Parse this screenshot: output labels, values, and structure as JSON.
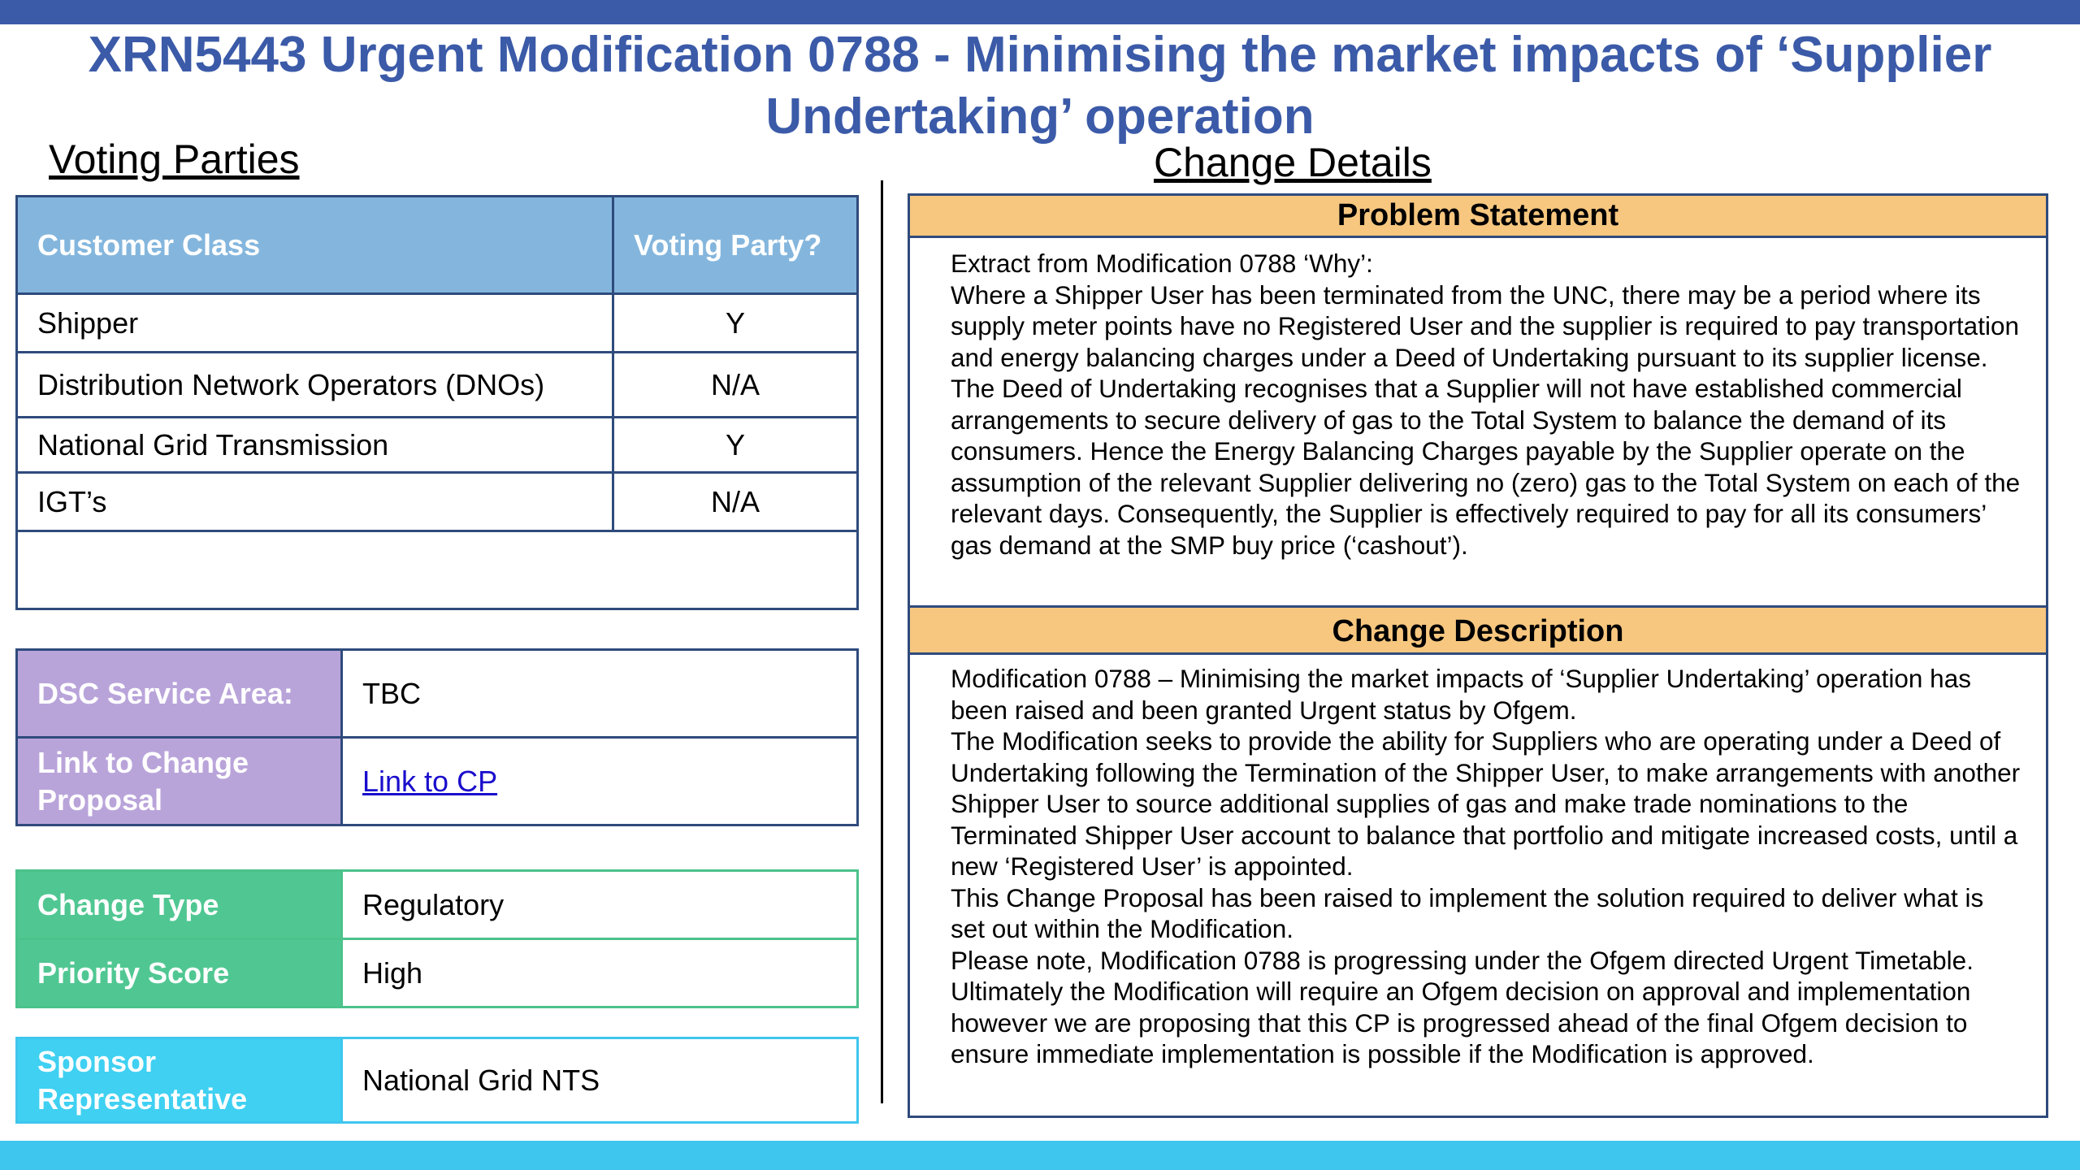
{
  "title": "XRN5443 Urgent Modification 0788 - Minimising the market impacts of ‘Supplier Undertaking’ operation",
  "voting_parties": {
    "heading": "Voting Parties",
    "columns": [
      "Customer Class",
      "Voting Party?"
    ],
    "rows": [
      {
        "customer_class": "Shipper",
        "voting": "Y"
      },
      {
        "customer_class": "Distribution Network Operators (DNOs)",
        "voting": "N/A"
      },
      {
        "customer_class": "National Grid Transmission",
        "voting": "Y"
      },
      {
        "customer_class": "IGT’s",
        "voting": "N/A"
      }
    ]
  },
  "info": {
    "dsc_service_area": {
      "label": "DSC Service Area:",
      "value": "TBC"
    },
    "link_to_cp": {
      "label": "Link to Change Proposal",
      "value": "Link to CP"
    },
    "change_type": {
      "label": "Change Type",
      "value": "Regulatory"
    },
    "priority_score": {
      "label": "Priority Score",
      "value": "High"
    },
    "sponsor": {
      "label": "Sponsor Representative",
      "value": "National Grid NTS"
    }
  },
  "change_details": {
    "heading": "Change Details",
    "problem_statement": {
      "title": "Problem Statement",
      "paragraphs": [
        "Extract from Modification 0788 ‘Why’:",
        "Where a Shipper User has been terminated from the UNC, there may be a period where its supply meter points have no Registered User and the supplier is required to pay transportation and energy balancing charges under a Deed of Undertaking pursuant to its supplier license.  The Deed of Undertaking recognises that a Supplier will not have established commercial arrangements to secure delivery of gas to the Total System to balance the demand of its consumers. Hence the Energy Balancing Charges payable by the Supplier operate on the assumption of the relevant Supplier delivering no (zero) gas to the Total System on each of the relevant days. Consequently, the Supplier is effectively required to pay for all its consumers’ gas demand at the SMP buy price (‘cashout’)."
      ]
    },
    "change_description": {
      "title": "Change Description",
      "paragraphs": [
        "Modification 0788 – Minimising the market impacts of ‘Supplier Undertaking’ operation has been raised and been granted Urgent status by Ofgem.",
        "The Modification seeks to provide the ability for Suppliers who are operating under a Deed of Undertaking following the Termination of the Shipper User, to make arrangements with another Shipper User to source additional supplies of gas and make trade nominations to the Terminated Shipper User account to balance that portfolio and mitigate increased costs, until a new ‘Registered User’ is appointed.",
        "This Change Proposal has been raised to implement the solution required to deliver what is set out within the Modification.",
        "Please note, Modification 0788 is progressing under the Ofgem directed Urgent Timetable. Ultimately the Modification will require an Ofgem decision on approval and implementation however we are proposing that this CP is progressed ahead of the final Ofgem decision to ensure immediate implementation is possible if the Modification is approved."
      ]
    }
  }
}
